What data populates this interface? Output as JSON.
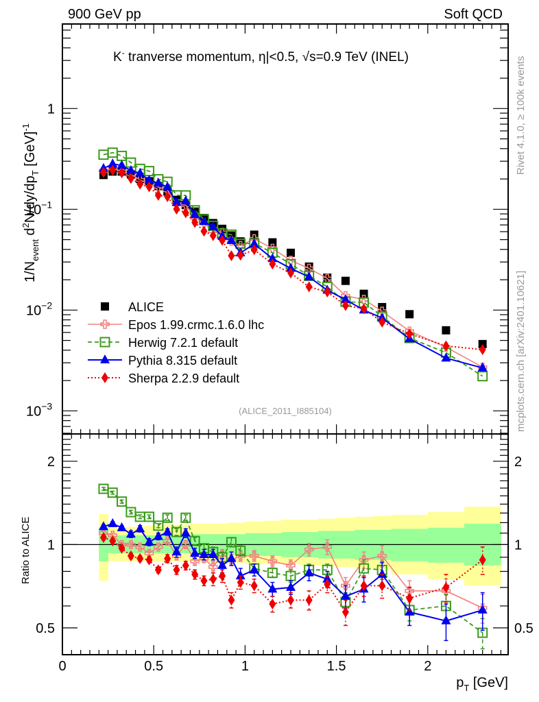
{
  "header": {
    "left": "900 GeV pp",
    "right": "Soft QCD"
  },
  "side_text": {
    "rivet": "Rivet 4.1.0, ≥ 100k events",
    "mcplots": "mcplots.cern.ch [arXiv:2401.10621]"
  },
  "chart_data": [
    {
      "panel": "main",
      "type": "line",
      "title": "K⁻ tranverse momentum, |η|<0.5, √s=0.9 TeV (INEL)",
      "title_parts": {
        "k": "K",
        "k_sup": "-",
        "rest1": " tranverse momentum, ",
        "eta": "η",
        "rest2": "|<0.5, ",
        "sqrt": "√",
        "rest3": "s=0.9 TeV (INEL)"
      },
      "ylabel": "1/N_event d²N/dy/dp_T [GeV]⁻¹",
      "ylabel_parts": {
        "a": "1/N",
        "a_sub": "event",
        "b": " d",
        "b_sup": "2",
        "c": "N/dy/dp",
        "c_sub": "T",
        "d": " [GeV]",
        "d_sup": "-1"
      },
      "yscale": "log",
      "ylim": [
        0.00059,
        6.9
      ],
      "xlim": [
        0,
        2.44
      ],
      "yticks": [
        {
          "v": 1,
          "label": "1"
        },
        {
          "v": 0.1,
          "label": "10",
          "sup": "−1"
        },
        {
          "v": 0.01,
          "label": "10",
          "sup": "−2"
        },
        {
          "v": 0.001,
          "label": "10",
          "sup": "−3"
        }
      ],
      "annotation": "(ALICE_2011_I885104)",
      "legend_position": "bottom-left",
      "x": [
        0.225,
        0.275,
        0.325,
        0.375,
        0.425,
        0.475,
        0.525,
        0.575,
        0.625,
        0.675,
        0.725,
        0.775,
        0.825,
        0.875,
        0.925,
        0.975,
        1.05,
        1.15,
        1.25,
        1.35,
        1.45,
        1.55,
        1.65,
        1.75,
        1.9,
        2.1,
        2.3
      ],
      "series": [
        {
          "name": "ALICE",
          "style": "data",
          "color": "#000000",
          "values": [
            0.219,
            0.237,
            0.237,
            0.222,
            0.2,
            0.19,
            0.17,
            0.15,
            0.124,
            0.11,
            0.095,
            0.082,
            0.073,
            0.064,
            0.055,
            0.048,
            0.056,
            0.047,
            0.037,
            0.027,
            0.021,
            0.0195,
            0.0145,
            0.0107,
            0.0091,
            0.0063,
            0.0046
          ]
        },
        {
          "name": "Epos 1.99.crmc.1.6.0 lhc",
          "style": "epos",
          "color": "#f08080"
        },
        {
          "name": "Herwig 7.2.1 default",
          "style": "herwig",
          "color": "#3a9a1a"
        },
        {
          "name": "Pythia 8.315 default",
          "style": "pythia",
          "color": "#0000ee"
        },
        {
          "name": "Sherpa 2.2.9 default",
          "style": "sherpa",
          "color": "#ee0000"
        }
      ]
    },
    {
      "panel": "ratio",
      "type": "line",
      "ylabel": "Ratio to ALICE",
      "xlabel": "p_T [GeV]",
      "xlabel_parts": {
        "p": "p",
        "sub": "T",
        "rest": " [GeV]"
      },
      "yscale": "log",
      "ylim": [
        0.4,
        2.51
      ],
      "xlim": [
        0,
        2.44
      ],
      "xticks": [
        {
          "v": 0,
          "label": "0"
        },
        {
          "v": 0.5,
          "label": "0.5"
        },
        {
          "v": 1,
          "label": "1"
        },
        {
          "v": 1.5,
          "label": "1.5"
        },
        {
          "v": 2,
          "label": "2"
        }
      ],
      "yticks": [
        {
          "v": 2,
          "label": "2"
        },
        {
          "v": 1,
          "label": "1"
        },
        {
          "v": 0.5,
          "label": "0.5"
        }
      ],
      "band_edges": [
        0.2,
        0.25,
        0.3,
        0.35,
        0.4,
        0.45,
        0.5,
        0.55,
        0.6,
        0.65,
        0.7,
        0.75,
        0.8,
        0.85,
        0.9,
        0.95,
        1.0,
        1.1,
        1.2,
        1.3,
        1.4,
        1.5,
        1.6,
        1.7,
        1.8,
        2.0,
        2.2,
        2.4
      ],
      "band_inner": {
        "color": "#99ff99",
        "lo": [
          0.87,
          0.93,
          0.93,
          0.93,
          0.93,
          0.93,
          0.93,
          0.93,
          0.93,
          0.93,
          0.92,
          0.92,
          0.92,
          0.92,
          0.92,
          0.92,
          0.91,
          0.91,
          0.9,
          0.9,
          0.89,
          0.89,
          0.88,
          0.88,
          0.87,
          0.86,
          0.84
        ],
        "hi": [
          1.15,
          1.08,
          1.08,
          1.08,
          1.08,
          1.08,
          1.08,
          1.08,
          1.08,
          1.08,
          1.09,
          1.09,
          1.09,
          1.09,
          1.09,
          1.09,
          1.1,
          1.1,
          1.11,
          1.11,
          1.12,
          1.12,
          1.13,
          1.13,
          1.14,
          1.15,
          1.19
        ]
      },
      "band_outer": {
        "color": "#ffff99",
        "lo": [
          0.74,
          0.87,
          0.87,
          0.87,
          0.87,
          0.87,
          0.87,
          0.87,
          0.87,
          0.87,
          0.87,
          0.86,
          0.86,
          0.86,
          0.86,
          0.86,
          0.85,
          0.85,
          0.85,
          0.84,
          0.84,
          0.83,
          0.82,
          0.81,
          0.78,
          0.75,
          0.71
        ],
        "hi": [
          1.29,
          1.15,
          1.15,
          1.16,
          1.16,
          1.17,
          1.17,
          1.18,
          1.18,
          1.18,
          1.19,
          1.19,
          1.19,
          1.19,
          1.2,
          1.2,
          1.21,
          1.22,
          1.23,
          1.23,
          1.24,
          1.25,
          1.26,
          1.27,
          1.28,
          1.31,
          1.37
        ]
      },
      "x": [
        0.225,
        0.275,
        0.325,
        0.375,
        0.425,
        0.475,
        0.525,
        0.575,
        0.625,
        0.675,
        0.725,
        0.775,
        0.825,
        0.875,
        0.925,
        0.975,
        1.05,
        1.15,
        1.25,
        1.35,
        1.45,
        1.55,
        1.65,
        1.75,
        1.9,
        2.1,
        2.3
      ],
      "series": [
        {
          "name": "Epos 1.99.crmc.1.6.0 lhc",
          "style": "epos",
          "color": "#f08080",
          "values": [
            1.1,
            1.08,
            1.0,
            1.0,
            0.98,
            0.93,
            0.98,
            1.03,
            0.91,
            1.0,
            0.87,
            0.89,
            0.83,
            0.92,
            0.88,
            0.91,
            0.91,
            0.87,
            0.84,
            0.96,
            0.98,
            0.71,
            0.88,
            0.91,
            0.68,
            0.68,
            0.59
          ],
          "err": [
            0.02,
            0.02,
            0.02,
            0.02,
            0.02,
            0.02,
            0.02,
            0.02,
            0.03,
            0.03,
            0.03,
            0.03,
            0.04,
            0.04,
            0.04,
            0.04,
            0.04,
            0.04,
            0.04,
            0.05,
            0.06,
            0.05,
            0.06,
            0.08,
            0.06,
            0.07,
            0.07
          ]
        },
        {
          "name": "Herwig 7.2.1 default",
          "style": "herwig",
          "color": "#3a9a1a",
          "values": [
            1.59,
            1.54,
            1.43,
            1.31,
            1.26,
            1.26,
            1.17,
            1.25,
            1.11,
            1.25,
            1.03,
            0.97,
            0.94,
            0.9,
            1.02,
            0.95,
            0.82,
            0.79,
            0.77,
            0.81,
            0.81,
            0.62,
            0.82,
            0.81,
            0.58,
            0.6,
            0.48
          ],
          "err": [
            0.02,
            0.02,
            0.02,
            0.02,
            0.02,
            0.02,
            0.02,
            0.03,
            0.03,
            0.03,
            0.03,
            0.03,
            0.04,
            0.04,
            0.04,
            0.04,
            0.03,
            0.03,
            0.04,
            0.04,
            0.04,
            0.05,
            0.06,
            0.06,
            0.05,
            0.06,
            0.06
          ]
        },
        {
          "name": "Pythia 8.315 default",
          "style": "pythia",
          "color": "#0000ee",
          "values": [
            1.16,
            1.19,
            1.15,
            1.09,
            1.14,
            1.02,
            1.07,
            1.11,
            0.94,
            1.1,
            0.93,
            0.92,
            0.92,
            0.84,
            0.89,
            0.77,
            0.81,
            0.69,
            0.7,
            0.79,
            0.75,
            0.65,
            0.69,
            0.78,
            0.57,
            0.53,
            0.58
          ],
          "err": [
            0.02,
            0.02,
            0.02,
            0.03,
            0.03,
            0.03,
            0.03,
            0.03,
            0.04,
            0.04,
            0.04,
            0.04,
            0.04,
            0.05,
            0.05,
            0.05,
            0.04,
            0.04,
            0.04,
            0.05,
            0.05,
            0.06,
            0.07,
            0.08,
            0.06,
            0.08,
            0.09
          ]
        },
        {
          "name": "Sherpa 2.2.9 default",
          "style": "sherpa",
          "color": "#ee0000",
          "values": [
            1.06,
            1.03,
            0.97,
            0.91,
            0.89,
            0.88,
            0.81,
            0.89,
            0.81,
            0.84,
            0.78,
            0.74,
            0.75,
            0.77,
            0.63,
            0.73,
            0.71,
            0.61,
            0.63,
            0.63,
            0.72,
            0.57,
            0.71,
            0.71,
            0.64,
            0.7,
            0.88
          ],
          "err": [
            0.02,
            0.02,
            0.02,
            0.02,
            0.02,
            0.02,
            0.02,
            0.03,
            0.03,
            0.03,
            0.03,
            0.03,
            0.04,
            0.04,
            0.04,
            0.04,
            0.04,
            0.04,
            0.04,
            0.05,
            0.05,
            0.06,
            0.06,
            0.07,
            0.06,
            0.08,
            0.1
          ]
        }
      ]
    }
  ]
}
